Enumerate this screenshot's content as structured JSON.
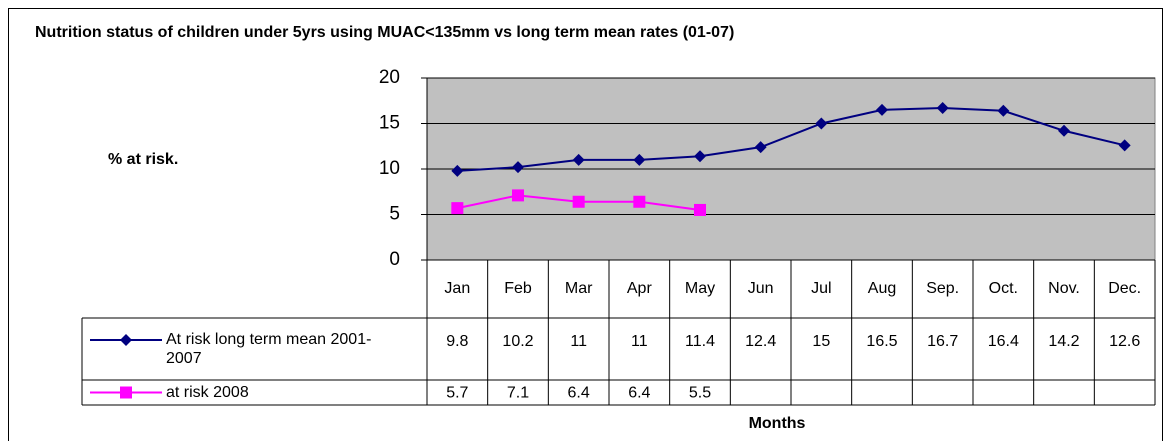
{
  "chart_data": {
    "type": "line",
    "title": "Nutrition status of children under 5yrs using MUAC<135mm vs long term mean rates (01-07)",
    "y_label": "% at risk.",
    "x_label": "Months",
    "categories": [
      "Jan",
      "Feb",
      "Mar",
      "Apr",
      "May",
      "Jun",
      "Jul",
      "Aug",
      "Sep.",
      "Oct.",
      "Nov.",
      "Dec."
    ],
    "series": [
      {
        "name": "At risk long term mean 2001-2007",
        "color": "#000080",
        "marker": "diamond",
        "values": [
          9.8,
          10.2,
          11,
          11,
          11.4,
          12.4,
          15,
          16.5,
          16.7,
          16.4,
          14.2,
          12.6
        ]
      },
      {
        "name": "at risk  2008",
        "color": "#ff00ff",
        "marker": "square",
        "values": [
          5.7,
          7.1,
          6.4,
          6.4,
          5.5,
          null,
          null,
          null,
          null,
          null,
          null,
          null
        ]
      }
    ],
    "ylim": [
      0,
      20
    ],
    "yticks": [
      0,
      5,
      10,
      15,
      20
    ],
    "grid": true,
    "plot_background": "#c0c0c0"
  }
}
